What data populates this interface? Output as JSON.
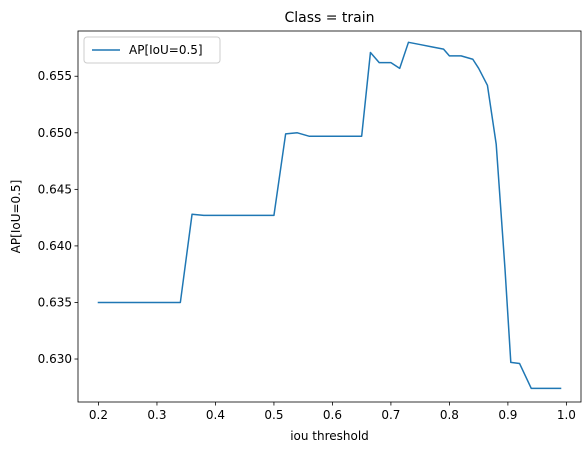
{
  "chart_data": {
    "type": "line",
    "title": "Class = train",
    "xlabel": "iou threshold",
    "ylabel": "AP[IoU=0.5]",
    "xlim": [
      0.165,
      1.025
    ],
    "ylim": [
      0.6262,
      0.659
    ],
    "xticks": [
      0.2,
      0.3,
      0.4,
      0.5,
      0.6,
      0.7,
      0.8,
      0.9,
      1.0
    ],
    "xtick_labels": [
      "0.2",
      "0.3",
      "0.4",
      "0.5",
      "0.6",
      "0.7",
      "0.8",
      "0.9",
      "1.0"
    ],
    "yticks": [
      0.63,
      0.635,
      0.64,
      0.645,
      0.65,
      0.655
    ],
    "ytick_labels": [
      "0.630",
      "0.635",
      "0.640",
      "0.645",
      "0.650",
      "0.655"
    ],
    "grid": false,
    "legend_position": "top-left",
    "series": [
      {
        "name": "AP[IoU=0.5]",
        "color": "#1f77b4",
        "x": [
          0.2,
          0.22,
          0.24,
          0.26,
          0.28,
          0.3,
          0.32,
          0.34,
          0.36,
          0.38,
          0.4,
          0.42,
          0.44,
          0.46,
          0.48,
          0.5,
          0.52,
          0.54,
          0.56,
          0.58,
          0.6,
          0.62,
          0.64,
          0.65,
          0.665,
          0.68,
          0.7,
          0.715,
          0.73,
          0.75,
          0.77,
          0.79,
          0.8,
          0.82,
          0.84,
          0.85,
          0.865,
          0.88,
          0.895,
          0.905,
          0.92,
          0.94,
          0.96,
          0.98,
          0.99
        ],
        "y": [
          0.635,
          0.635,
          0.635,
          0.635,
          0.635,
          0.635,
          0.635,
          0.635,
          0.6428,
          0.6427,
          0.6427,
          0.6427,
          0.6427,
          0.6427,
          0.6427,
          0.6427,
          0.6499,
          0.65,
          0.6497,
          0.6497,
          0.6497,
          0.6497,
          0.6497,
          0.6497,
          0.6571,
          0.6562,
          0.6562,
          0.6557,
          0.658,
          0.6578,
          0.6576,
          0.6574,
          0.6568,
          0.6568,
          0.6565,
          0.6557,
          0.6542,
          0.649,
          0.638,
          0.6297,
          0.6296,
          0.6274,
          0.6274,
          0.6274,
          0.6274
        ]
      }
    ]
  }
}
